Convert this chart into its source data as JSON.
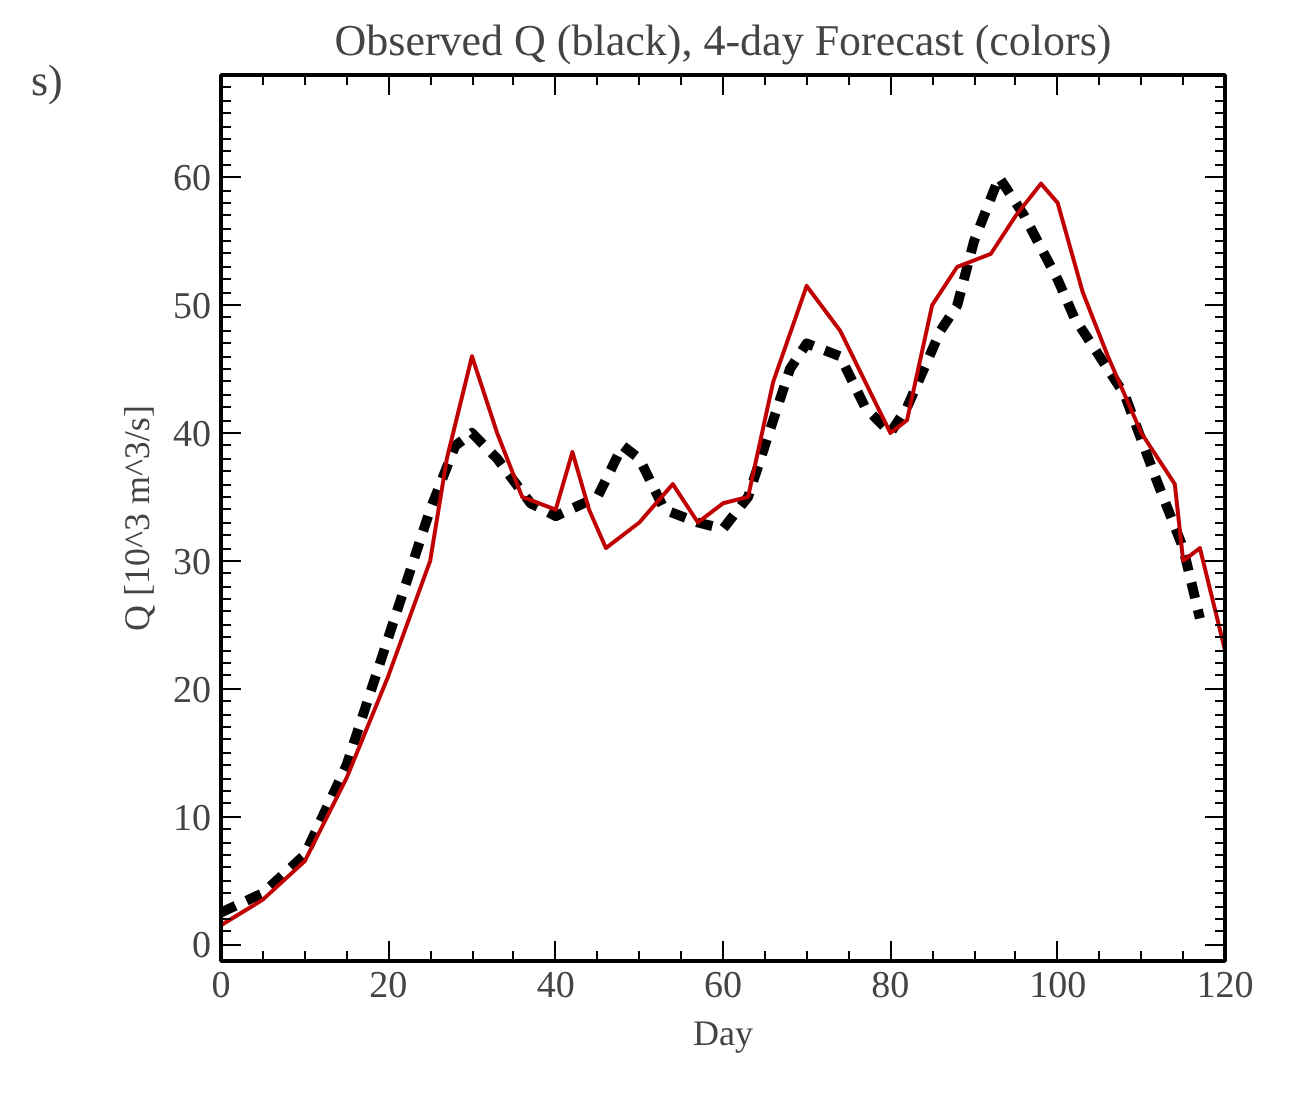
{
  "chart_data": {
    "type": "line",
    "title": "Observed Q (black), 4-day Forecast (colors)",
    "xlabel": "Day",
    "ylabel": "Q [10^3 m^3/s]",
    "annotations": [
      "s)"
    ],
    "xlim": [
      0,
      120
    ],
    "ylim": [
      -1.3,
      68
    ],
    "xticks": [
      0,
      20,
      40,
      60,
      80,
      100,
      120
    ],
    "yticks": [
      0,
      10,
      20,
      30,
      40,
      50,
      60
    ],
    "grid": false,
    "series": [
      {
        "color": "#000000",
        "line_style": "dashed",
        "x": [
          0,
          5,
          10,
          15,
          20,
          25,
          28,
          30,
          33,
          37,
          40,
          45,
          48,
          50,
          53,
          57,
          60,
          63,
          66,
          68,
          70,
          74,
          77,
          80,
          82,
          86,
          88,
          90,
          93,
          96,
          100,
          102,
          105,
          108,
          112,
          115,
          117
        ],
        "values": [
          2.5,
          4,
          7,
          14,
          24,
          34,
          39,
          40,
          38,
          34.5,
          33.5,
          35,
          39,
          38,
          34,
          33,
          32.5,
          35,
          41,
          45,
          47,
          46,
          42,
          40,
          42,
          48,
          50,
          55,
          60,
          57,
          52,
          49,
          46,
          43,
          36,
          31,
          25.5
        ]
      },
      {
        "color": "#c00000",
        "line_style": "solid",
        "x": [
          0,
          5,
          10,
          15,
          20,
          25,
          27,
          30,
          33,
          36,
          40,
          42,
          44,
          46,
          50,
          54,
          57,
          60,
          63,
          66,
          70,
          74,
          77,
          80,
          82,
          85,
          88,
          92,
          95,
          98,
          100,
          103,
          106,
          110,
          114,
          115,
          117,
          120
        ],
        "values": [
          1.5,
          3.5,
          6.5,
          13,
          21,
          30,
          38,
          46,
          40,
          35,
          34,
          38.5,
          34,
          31,
          33,
          36,
          33,
          34.5,
          35,
          44,
          51.5,
          48,
          44,
          40,
          41,
          50,
          53,
          54,
          57,
          59.5,
          58,
          51,
          46,
          40,
          36,
          30,
          31,
          23
        ]
      }
    ]
  }
}
